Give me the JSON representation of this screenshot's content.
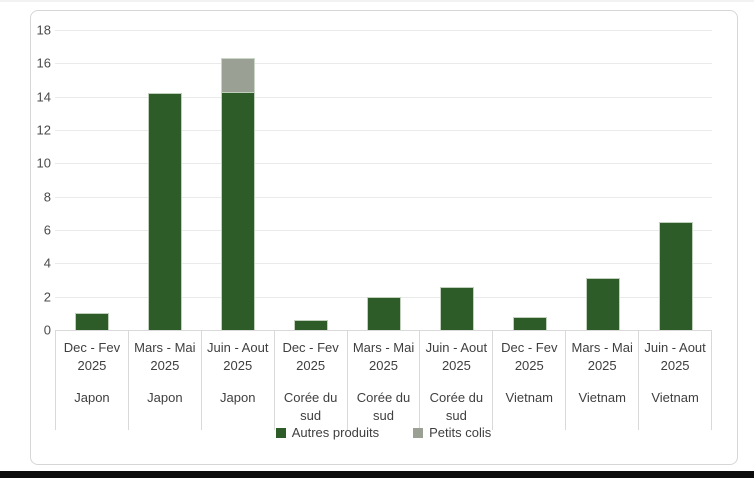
{
  "chart_data": {
    "type": "bar",
    "stacked": true,
    "title": "",
    "xlabel": "",
    "ylabel": "",
    "ylim": [
      0,
      18
    ],
    "ytick_step": 2,
    "grid": true,
    "legend_position": "bottom",
    "categories": [
      {
        "period": "Dec - Fev",
        "year": "2025",
        "group": "Japon"
      },
      {
        "period": "Mars - Mai",
        "year": "2025",
        "group": "Japon"
      },
      {
        "period": "Juin - Aout",
        "year": "2025",
        "group": "Japon"
      },
      {
        "period": "Dec - Fev",
        "year": "2025",
        "group": "Corée du sud"
      },
      {
        "period": "Mars - Mai",
        "year": "2025",
        "group": "Corée du sud"
      },
      {
        "period": "Juin - Aout",
        "year": "2025",
        "group": "Corée du sud"
      },
      {
        "period": "Dec - Fev",
        "year": "2025",
        "group": "Vietnam"
      },
      {
        "period": "Mars - Mai",
        "year": "2025",
        "group": "Vietnam"
      },
      {
        "period": "Juin - Aout",
        "year": "2025",
        "group": "Vietnam"
      }
    ],
    "series": [
      {
        "name": "Autres produits",
        "color": "#2e5c28",
        "values": [
          1.0,
          14.2,
          14.3,
          0.6,
          2.0,
          2.6,
          0.8,
          3.1,
          6.5
        ]
      },
      {
        "name": "Petits colis",
        "color": "#9aa094",
        "values": [
          0,
          0,
          2.0,
          0,
          0,
          0,
          0,
          0,
          0
        ]
      }
    ]
  },
  "colors": {
    "gridline": "#eaeaea",
    "axis_line": "#d9d9d9",
    "text": "#3f3f3f",
    "card_border": "#d6d6d6",
    "bottom_strip": "#0c0c0c"
  }
}
